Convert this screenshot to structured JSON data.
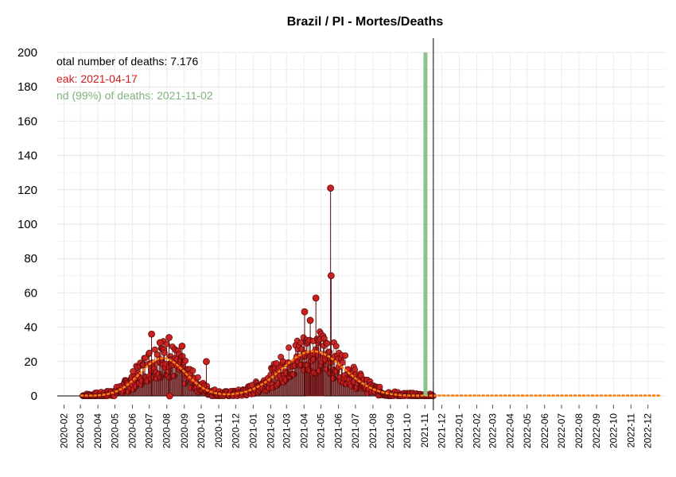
{
  "chart_data": {
    "type": "line",
    "title": "Brazil / PI - Mortes/Deaths",
    "xlabel": "",
    "ylabel": "",
    "ylim": [
      0,
      200
    ],
    "y_ticks": [
      "0",
      "20",
      "40",
      "60",
      "80",
      "100",
      "120",
      "140",
      "160",
      "180",
      "200"
    ],
    "x_range": [
      "2020-01-20",
      "2022-12-31"
    ],
    "x_ticks": [
      "2020-02",
      "2020-03",
      "2020-04",
      "2020-05",
      "2020-06",
      "2020-07",
      "2020-08",
      "2020-09",
      "2020-10",
      "2020-11",
      "2020-12",
      "2021-01",
      "2021-02",
      "2021-03",
      "2021-04",
      "2021-05",
      "2021-06",
      "2021-07",
      "2021-08",
      "2021-09",
      "2021-10",
      "2021-11",
      "2021-12",
      "2022-01",
      "2022-02",
      "2022-03",
      "2022-04",
      "2022-05",
      "2022-06",
      "2022-07",
      "2022-08",
      "2022-09",
      "2022-10",
      "2022-11",
      "2022-12"
    ],
    "grid": true,
    "annotations": {
      "total": "otal number of deaths: 7.176",
      "peak": "eak: 2021-04-17",
      "end": "nd (99%) of deaths: 2021-11-02"
    },
    "colors": {
      "points": "#cc2020",
      "points_edge": "#5a0a0a",
      "fit": "#ff7f0e",
      "peak_area": "#d65a68",
      "end_bar": "#8fc08f",
      "forecast": "#aaaaaa",
      "total_text": "#000000",
      "peak_text": "#cc2020",
      "end_text": "#7fb27f"
    },
    "fit_waves": [
      {
        "peak_date": "2020-07-25",
        "height": 22,
        "width_days": 40
      },
      {
        "peak_date": "2021-04-17",
        "height": 26,
        "width_days": 55
      }
    ],
    "peak_area": {
      "start": "2021-04-05",
      "end": "2021-05-05",
      "value": 26
    },
    "vertical_markers": {
      "end_99": "2021-11-02",
      "today": "2021-11-16"
    },
    "daily_outliers": [
      {
        "date": "2020-07-05",
        "value": 36
      },
      {
        "date": "2020-07-20",
        "value": 31
      },
      {
        "date": "2020-08-05",
        "value": 34
      },
      {
        "date": "2020-08-06",
        "value": 0
      },
      {
        "date": "2020-08-28",
        "value": 29
      },
      {
        "date": "2020-10-10",
        "value": 20
      },
      {
        "date": "2021-04-02",
        "value": 49
      },
      {
        "date": "2021-04-12",
        "value": 44
      },
      {
        "date": "2021-04-22",
        "value": 57
      },
      {
        "date": "2021-05-18",
        "value": 121
      },
      {
        "date": "2021-05-19",
        "value": 70
      }
    ]
  }
}
